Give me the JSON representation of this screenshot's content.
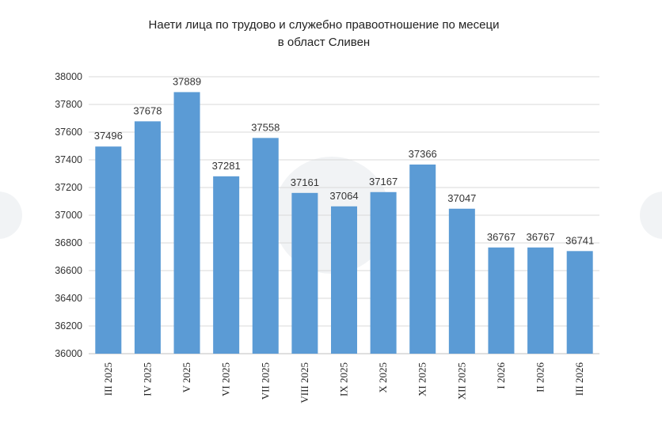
{
  "chart_data": {
    "type": "bar",
    "title_lines": [
      "Наети лица по трудово и служебно правоотношение по месеци",
      "в област Сливен"
    ],
    "categories": [
      "III 2025",
      "IV 2025",
      "V 2025",
      "VI 2025",
      "VII 2025",
      "VIII 2025",
      "IX 2025",
      "X 2025",
      "XI 2025",
      "XII 2025",
      "I 2026",
      "II 2026",
      "III 2026"
    ],
    "values": [
      37496,
      37678,
      37889,
      37281,
      37558,
      37161,
      37064,
      37167,
      37366,
      37047,
      36767,
      36767,
      36741
    ],
    "ylim": [
      36000,
      38000
    ],
    "yticks": [
      36000,
      36200,
      36400,
      36600,
      36800,
      37000,
      37200,
      37400,
      37600,
      37800,
      38000
    ],
    "grid": true,
    "legend": "none",
    "bar_color": "#5b9bd5"
  }
}
